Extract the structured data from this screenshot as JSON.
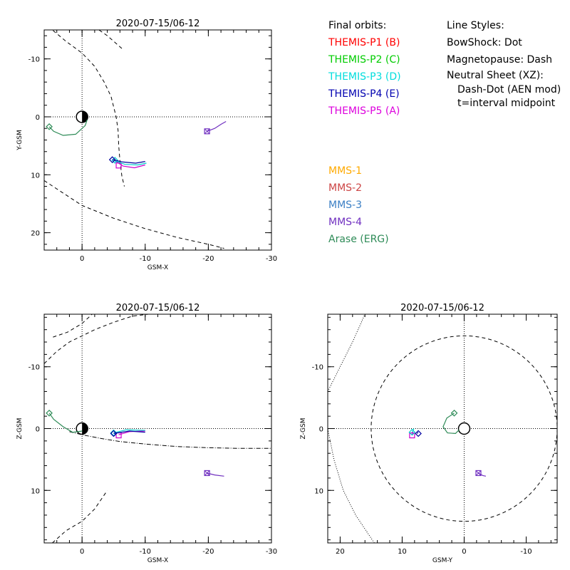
{
  "chart_data": [
    {
      "type": "scatter",
      "title": "2020-07-15/06-12",
      "xlabel": "GSM-X",
      "ylabel": "Y-GSM",
      "xlim": [
        6,
        -30
      ],
      "ylim": [
        -15,
        23
      ],
      "xticks": [
        0,
        -10,
        -20,
        -30
      ],
      "xtick_labels": [
        "0",
        "-10",
        "-20",
        "-30"
      ],
      "yticks": [
        -10,
        0,
        10,
        20
      ],
      "ytick_labels": [
        "-10",
        "0",
        "10",
        "20"
      ],
      "bowshock": [
        [
          4.6,
          -14.9
        ],
        [
          2.5,
          -13.0
        ],
        [
          0,
          -11.0
        ],
        [
          -2,
          -8.7
        ],
        [
          -3.5,
          -6.0
        ],
        [
          -4.6,
          -3.5
        ],
        [
          -5.4,
          0
        ],
        [
          -5.7,
          2.3
        ],
        [
          -5.8,
          5.0
        ],
        [
          -6,
          7.5
        ],
        [
          -6.3,
          10.2
        ],
        [
          -6.7,
          12.0
        ]
      ],
      "magnetopause": [
        [
          -6.3,
          -11.8
        ],
        [
          -4,
          -14.0
        ],
        [
          -2,
          -15.5
        ],
        [
          0,
          -16.7
        ],
        [
          2,
          -17.4
        ],
        [
          4.8,
          -18.3
        ]
      ],
      "magnetopause_dash": [
        [
          6,
          11.0
        ],
        [
          4.2,
          12.3
        ],
        [
          0,
          15.3
        ],
        [
          -5,
          17.5
        ],
        [
          -10,
          19.3
        ],
        [
          -15,
          20.8
        ],
        [
          -20,
          22.0
        ],
        [
          -22.5,
          22.7
        ]
      ],
      "neutral_sheet": [],
      "series": [
        {
          "name": "THEMIS-P5 (A)",
          "color": "#cc00cc",
          "points": [
            [
              -5.2,
              7.6
            ],
            [
              -6.5,
              8.5
            ],
            [
              -8.3,
              8.8
            ],
            [
              -10,
              8.3
            ]
          ],
          "marker": [
            -5.8,
            8.4
          ]
        },
        {
          "name": "THEMIS-P3 (D)",
          "color": "#00cccc",
          "points": [
            [
              -5.0,
              7.5
            ],
            [
              -6.8,
              8.2
            ],
            [
              -8.8,
              8.3
            ],
            [
              -10.2,
              8.0
            ]
          ],
          "marker": [
            -5.2,
            7.5
          ]
        },
        {
          "name": "THEMIS-P4 (E)",
          "color": "#0000a0",
          "points": [
            [
              -4.8,
              7.4
            ],
            [
              -6.5,
              7.8
            ],
            [
              -8.5,
              8.0
            ],
            [
              -10,
              7.7
            ]
          ],
          "marker": [
            -4.8,
            7.4
          ]
        },
        {
          "name": "MMS-4",
          "color": "#7030c0",
          "points": [
            [
              -19.8,
              2.5
            ],
            [
              -21,
              2.0
            ],
            [
              -22,
              1.3
            ],
            [
              -22.8,
              0.8
            ]
          ],
          "marker": [
            -19.8,
            2.5
          ]
        },
        {
          "name": "Arase (ERG)",
          "color": "#2e8b57",
          "points": [
            [
              5.2,
              1.7
            ],
            [
              4.5,
              2.5
            ],
            [
              3,
              3.2
            ],
            [
              1,
              3.0
            ],
            [
              -0.5,
              1.5
            ],
            [
              -0.8,
              0.5
            ]
          ],
          "marker": [
            5.2,
            1.7
          ]
        }
      ]
    },
    {
      "type": "scatter",
      "title": "2020-07-15/06-12",
      "xlabel": "GSM-X",
      "ylabel": "Z-GSM",
      "xlim": [
        6,
        -30
      ],
      "ylim": [
        -18.5,
        18.5
      ],
      "xticks": [
        0,
        -10,
        -20,
        -30
      ],
      "xtick_labels": [
        "0",
        "-10",
        "-20",
        "-30"
      ],
      "yticks": [
        -10,
        0,
        10
      ],
      "ytick_labels": [
        "-10",
        "0",
        "10"
      ],
      "bowshock": [
        [
          4.7,
          18.5
        ],
        [
          2.5,
          16.5
        ],
        [
          0,
          15.0
        ],
        [
          -2,
          13.0
        ],
        [
          -4,
          10.0
        ]
      ],
      "magnetopause": [
        [
          6,
          -10.5
        ],
        [
          4,
          -12.5
        ],
        [
          2,
          -14.0
        ],
        [
          0,
          -15.0
        ],
        [
          -2,
          -16.0
        ],
        [
          -5,
          -17.2
        ],
        [
          -8,
          -18.2
        ],
        [
          -10.5,
          -18.5
        ]
      ],
      "magnetopause_dash": [
        [
          4.6,
          -14.8
        ],
        [
          2.3,
          -15.6
        ],
        [
          0,
          -17.0
        ],
        [
          -1.6,
          -18.5
        ]
      ],
      "neutral_sheet": [
        [
          2,
          0.5
        ],
        [
          0,
          1.0
        ],
        [
          -3,
          1.6
        ],
        [
          -6,
          2.1
        ],
        [
          -10,
          2.5
        ],
        [
          -15,
          2.9
        ],
        [
          -20,
          3.1
        ],
        [
          -25,
          3.2
        ],
        [
          -30,
          3.2
        ]
      ],
      "series": [
        {
          "name": "THEMIS-P5 (A)",
          "color": "#cc00cc",
          "points": [
            [
              -5.8,
              1.0
            ],
            [
              -7.5,
              0.5
            ],
            [
              -10,
              0.4
            ]
          ],
          "marker": [
            -5.8,
            1.1
          ]
        },
        {
          "name": "THEMIS-P3 (D)",
          "color": "#00cccc",
          "points": [
            [
              -5.0,
              0.7
            ],
            [
              -7.0,
              0.2
            ],
            [
              -10,
              0.3
            ]
          ],
          "marker": [
            -5.0,
            0.7
          ]
        },
        {
          "name": "THEMIS-P4 (E)",
          "color": "#0000a0",
          "points": [
            [
              -5.0,
              0.8
            ],
            [
              -7.5,
              0.4
            ],
            [
              -10,
              0.6
            ]
          ],
          "marker": [
            -5.0,
            0.8
          ]
        },
        {
          "name": "MMS-4",
          "color": "#7030c0",
          "points": [
            [
              -19.8,
              7.2
            ],
            [
              -21,
              7.5
            ],
            [
              -22.5,
              7.7
            ]
          ],
          "marker": [
            -19.8,
            7.2
          ]
        },
        {
          "name": "Arase (ERG)",
          "color": "#2e8b57",
          "points": [
            [
              5.2,
              -2.5
            ],
            [
              4.5,
              -1.5
            ],
            [
              3,
              -0.3
            ],
            [
              1.5,
              0.6
            ],
            [
              0,
              0.4
            ]
          ],
          "marker": [
            5.2,
            -2.5
          ]
        }
      ]
    },
    {
      "type": "scatter",
      "title": "2020-07-15/06-12",
      "xlabel": "GSM-Y",
      "ylabel": "Z-GSM",
      "xlim": [
        22,
        -15
      ],
      "ylim": [
        -18.5,
        18.5
      ],
      "xticks": [
        20,
        10,
        0,
        -10
      ],
      "xtick_labels": [
        "20",
        "10",
        "0",
        "-10"
      ],
      "yticks": [
        -10,
        0,
        10
      ],
      "ytick_labels": [
        "-10",
        "0",
        "10"
      ],
      "bowshock": [],
      "magnetopause": [],
      "magnetopause_circle": {
        "cx": 0,
        "cy": 0,
        "r": 15
      },
      "bowshock_dot": [
        [
          14.5,
          18.5
        ],
        [
          17.5,
          14.0
        ],
        [
          19.5,
          10.0
        ],
        [
          21,
          5.0
        ],
        [
          22,
          0
        ]
      ],
      "bowshock_dot2": [
        [
          22,
          -6
        ],
        [
          20,
          -10.0
        ],
        [
          18,
          -14.0
        ],
        [
          16,
          -18.5
        ]
      ],
      "neutral_sheet": [],
      "series": [
        {
          "name": "THEMIS-P5 (A)",
          "color": "#cc00cc",
          "points": [
            [
              8.4,
              1.1
            ],
            [
              8.3,
              0.5
            ]
          ],
          "marker": [
            8.4,
            1.1
          ]
        },
        {
          "name": "THEMIS-P3 (D)",
          "color": "#00cccc",
          "points": [
            [
              8.4,
              0.6
            ],
            [
              8.1,
              0.0
            ]
          ],
          "marker": [
            8.4,
            0.6
          ]
        },
        {
          "name": "THEMIS-P4 (E)",
          "color": "#0000a0",
          "points": [
            [
              7.6,
              0.8
            ],
            [
              7.4,
              0.6
            ]
          ],
          "marker": [
            7.4,
            0.8
          ]
        },
        {
          "name": "MMS-4",
          "color": "#7030c0",
          "points": [
            [
              -2.3,
              7.2
            ],
            [
              -3.0,
              7.6
            ],
            [
              -3.5,
              7.7
            ]
          ],
          "marker": [
            -2.3,
            7.2
          ]
        },
        {
          "name": "Arase (ERG)",
          "color": "#2e8b57",
          "points": [
            [
              1.6,
              -2.5
            ],
            [
              2.8,
              -1.7
            ],
            [
              3.4,
              -0.3
            ],
            [
              2.7,
              0.7
            ],
            [
              1.4,
              0.8
            ],
            [
              0.8,
              0.2
            ]
          ],
          "marker": [
            1.6,
            -2.5
          ]
        }
      ]
    }
  ],
  "legend_orbits": {
    "title": "Final orbits:",
    "items": [
      {
        "label": "THEMIS-P1 (B)",
        "color": "#ff0000"
      },
      {
        "label": "THEMIS-P2 (C)",
        "color": "#00cc00"
      },
      {
        "label": "THEMIS-P3 (D)",
        "color": "#00dddd"
      },
      {
        "label": "THEMIS-P4 (E)",
        "color": "#0000b0"
      },
      {
        "label": "THEMIS-P5 (A)",
        "color": "#dd00dd"
      }
    ]
  },
  "legend_styles": {
    "title": "Line Styles:",
    "lines": [
      "BowShock: Dot",
      "Magnetopause: Dash",
      "Neutral Sheet (XZ):"
    ],
    "sub_lines": [
      "Dash-Dot (AEN mod)",
      "t=interval midpoint"
    ]
  },
  "legend_mms": {
    "items": [
      {
        "label": "MMS-1",
        "color": "#ffaa00"
      },
      {
        "label": "MMS-2",
        "color": "#cc4444"
      },
      {
        "label": "MMS-3",
        "color": "#3b7fc4"
      },
      {
        "label": "MMS-4",
        "color": "#7030c0"
      },
      {
        "label": "Arase (ERG)",
        "color": "#2e8b57"
      }
    ]
  }
}
